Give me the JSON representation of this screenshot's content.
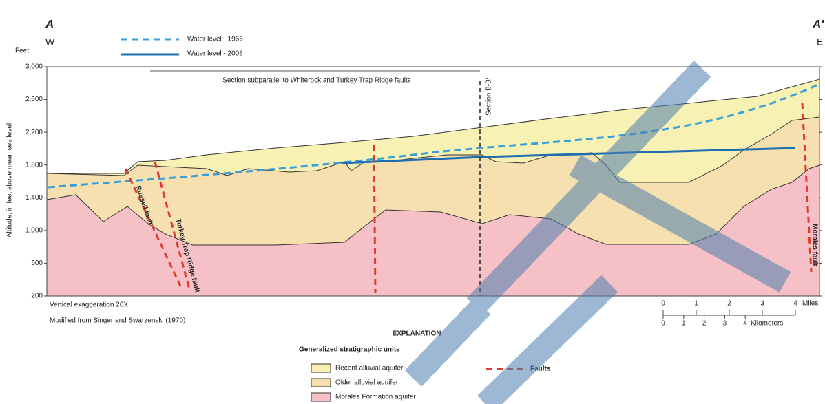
{
  "title_left": "A",
  "title_right": "A′",
  "west": "W",
  "east": "E",
  "legend": [
    "Water level - 1966",
    "Water level - 2008"
  ],
  "y_axis": {
    "unit": "Feet",
    "label": "Altitude, in feet above mean sea level",
    "ticks": [
      "3,000",
      "2,600",
      "2,200",
      "1,800",
      "1,400",
      "1,000",
      "600",
      "200"
    ]
  },
  "annotations": {
    "section_note": "Section subparallel to Whiterock and Turkey Trap Ridge faults",
    "section_bb": "Section B-B′",
    "russell": "Russell fault",
    "turkey": "Turkey Trap Ridge fault",
    "morales": "Morales fault"
  },
  "notes": [
    "Vertical exaggeration 26X",
    "Modified from Singer and Swarzenski (1970)"
  ],
  "scale": {
    "miles": [
      "0",
      "1",
      "2",
      "3",
      "4"
    ],
    "miles_unit": "Miles",
    "km": [
      "0",
      "1",
      "2",
      "3",
      "4"
    ],
    "km_unit": "Kilometers"
  },
  "explanation": {
    "title": "EXPLANATION",
    "subtitle": "Generalized stratigraphic units",
    "units": [
      "Recent alluvial aquifer",
      "Older alluvial aquifer",
      "Morales Formation aquifer"
    ],
    "faults": "Faults"
  }
}
